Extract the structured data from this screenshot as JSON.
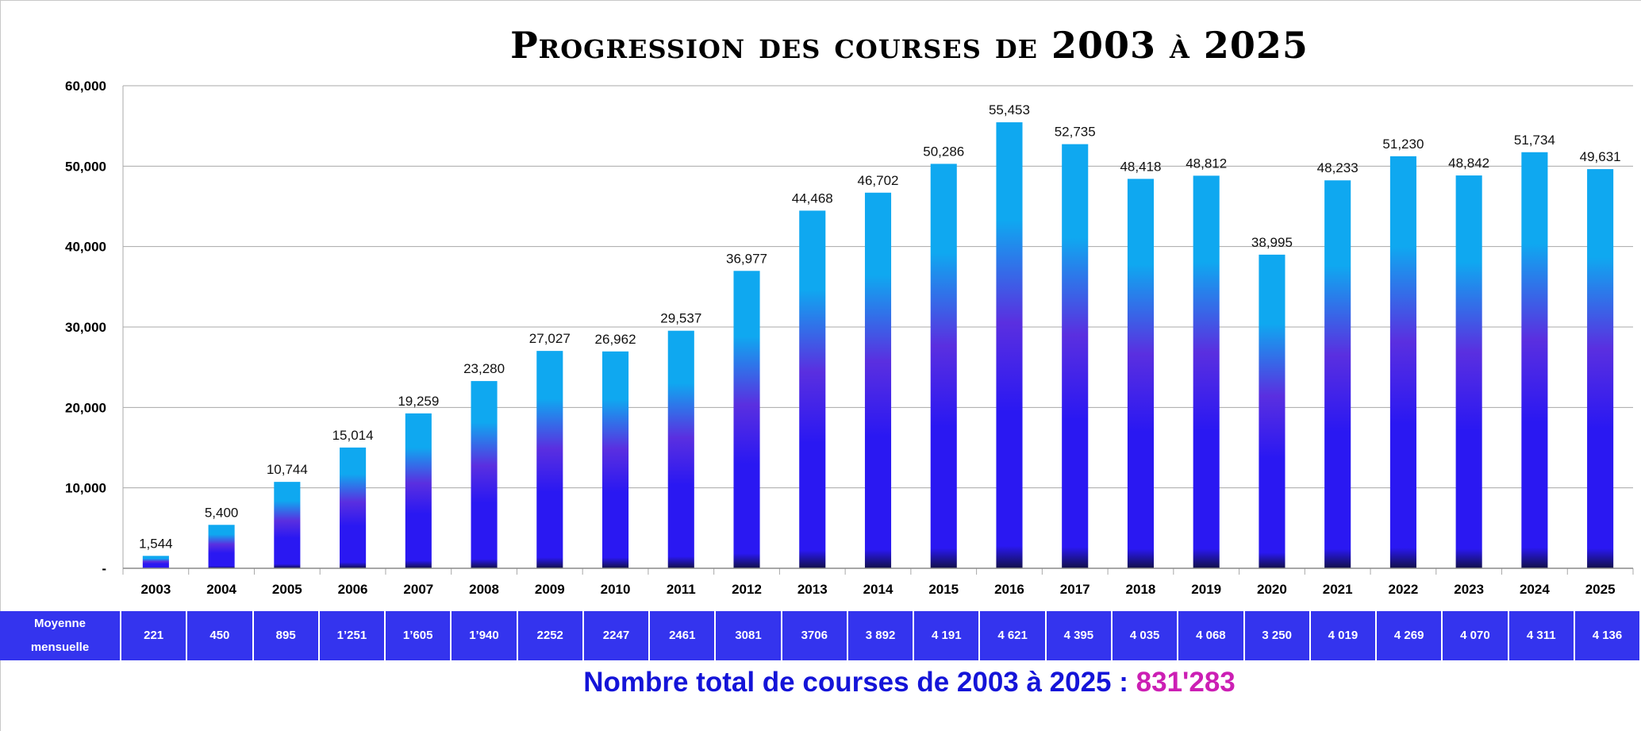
{
  "chart_data": {
    "type": "bar",
    "title": "Progression des courses de 2003 à 2025",
    "categories": [
      "2003",
      "2004",
      "2005",
      "2006",
      "2007",
      "2008",
      "2009",
      "2010",
      "2011",
      "2012",
      "2013",
      "2014",
      "2015",
      "2016",
      "2017",
      "2018",
      "2019",
      "2020",
      "2021",
      "2022",
      "2023",
      "2024",
      "2025"
    ],
    "values": [
      1544,
      5400,
      10744,
      15014,
      19259,
      23280,
      27027,
      26962,
      29537,
      36977,
      44468,
      46702,
      50286,
      55453,
      52735,
      48418,
      48812,
      38995,
      48233,
      51230,
      48842,
      51734,
      49631
    ],
    "data_labels": [
      "1,544",
      "5,400",
      "10,744",
      "15,014",
      "19,259",
      "23,280",
      "27,027",
      "26,962",
      "29,537",
      "36,977",
      "44,468",
      "46,702",
      "50,286",
      "55,453",
      "52,735",
      "48,418",
      "48,812",
      "38,995",
      "48,233",
      "51,230",
      "48,842",
      "51,734",
      "49,631"
    ],
    "y_ticks": [
      {
        "value": 0,
        "label": "-"
      },
      {
        "value": 10000,
        "label": "10,000"
      },
      {
        "value": 20000,
        "label": "20,000"
      },
      {
        "value": 30000,
        "label": "30,000"
      },
      {
        "value": 40000,
        "label": "40,000"
      },
      {
        "value": 50000,
        "label": "50,000"
      },
      {
        "value": 60000,
        "label": "60,000"
      }
    ],
    "ylim": [
      0,
      60000
    ],
    "xlabel": "",
    "ylabel": "",
    "grid": true,
    "legend": "none",
    "colors": {
      "bar_top": "#0fa8f0",
      "bar_mid": "#5a2fe0",
      "bar_low": "#2a18f2",
      "bar_base": "#12104a",
      "gridline": "#a8a8a8"
    }
  },
  "monthly_average": {
    "label_line1": "Moyenne",
    "label_line2": "mensuelle",
    "values": [
      "221",
      "450",
      "895",
      "1’251",
      "1’605",
      "1’940",
      "2252",
      "2247",
      "2461",
      "3081",
      "3706",
      "3 892",
      "4 191",
      "4 621",
      "4 395",
      "4 035",
      "4 068",
      "3 250",
      "4 019",
      "4 269",
      "4 070",
      "4 311",
      "4 136"
    ]
  },
  "total": {
    "prefix": "Nombre total de courses de 2003 à 2025 : ",
    "value": "831'283"
  },
  "colors": {
    "table_background": "#3434ee",
    "total_text": "#1414d8",
    "total_value": "#cc1fb4"
  }
}
